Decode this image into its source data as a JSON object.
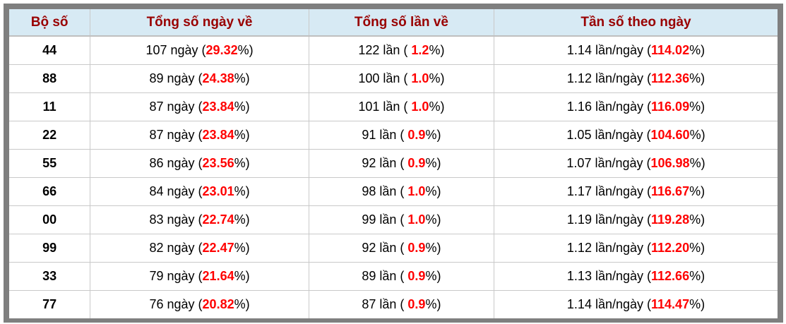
{
  "colors": {
    "frame_gray": "#7f7f7f",
    "header_bg": "#d7eaf4",
    "header_text": "#990000",
    "highlight_red": "#ff0000",
    "grid_line": "#c9c9c9",
    "cell_text": "#000000"
  },
  "table": {
    "columns": [
      {
        "label": "Bộ số"
      },
      {
        "label": "Tổng số ngày về"
      },
      {
        "label": "Tổng số lần về"
      },
      {
        "label": "Tần số theo ngày"
      }
    ],
    "rows": [
      {
        "pair": "44",
        "days": {
          "pre": "107 ngày (",
          "value": "29.32",
          "post": "%)"
        },
        "times": {
          "pre": "122 lần ( ",
          "value": "1.2",
          "post": "%)"
        },
        "freq": {
          "pre": "1.14 lần/ngày (",
          "value": "114.02",
          "post": "%)"
        }
      },
      {
        "pair": "88",
        "days": {
          "pre": "89 ngày (",
          "value": "24.38",
          "post": "%)"
        },
        "times": {
          "pre": "100 lần ( ",
          "value": "1.0",
          "post": "%)"
        },
        "freq": {
          "pre": "1.12 lần/ngày (",
          "value": "112.36",
          "post": "%)"
        }
      },
      {
        "pair": "11",
        "days": {
          "pre": "87 ngày (",
          "value": "23.84",
          "post": "%)"
        },
        "times": {
          "pre": "101 lần ( ",
          "value": "1.0",
          "post": "%)"
        },
        "freq": {
          "pre": "1.16 lần/ngày (",
          "value": "116.09",
          "post": "%)"
        }
      },
      {
        "pair": "22",
        "days": {
          "pre": "87 ngày (",
          "value": "23.84",
          "post": "%)"
        },
        "times": {
          "pre": "91 lần ( ",
          "value": "0.9",
          "post": "%)"
        },
        "freq": {
          "pre": "1.05 lần/ngày (",
          "value": "104.60",
          "post": "%)"
        }
      },
      {
        "pair": "55",
        "days": {
          "pre": "86 ngày (",
          "value": "23.56",
          "post": "%)"
        },
        "times": {
          "pre": "92 lần ( ",
          "value": "0.9",
          "post": "%)"
        },
        "freq": {
          "pre": "1.07 lần/ngày (",
          "value": "106.98",
          "post": "%)"
        }
      },
      {
        "pair": "66",
        "days": {
          "pre": "84 ngày (",
          "value": "23.01",
          "post": "%)"
        },
        "times": {
          "pre": "98 lần ( ",
          "value": "1.0",
          "post": "%)"
        },
        "freq": {
          "pre": "1.17 lần/ngày (",
          "value": "116.67",
          "post": "%)"
        }
      },
      {
        "pair": "00",
        "days": {
          "pre": "83 ngày (",
          "value": "22.74",
          "post": "%)"
        },
        "times": {
          "pre": "99 lần ( ",
          "value": "1.0",
          "post": "%)"
        },
        "freq": {
          "pre": "1.19 lần/ngày (",
          "value": "119.28",
          "post": "%)"
        }
      },
      {
        "pair": "99",
        "days": {
          "pre": "82 ngày (",
          "value": "22.47",
          "post": "%)"
        },
        "times": {
          "pre": "92 lần ( ",
          "value": "0.9",
          "post": "%)"
        },
        "freq": {
          "pre": "1.12 lần/ngày (",
          "value": "112.20",
          "post": "%)"
        }
      },
      {
        "pair": "33",
        "days": {
          "pre": "79 ngày (",
          "value": "21.64",
          "post": "%)"
        },
        "times": {
          "pre": "89 lần ( ",
          "value": "0.9",
          "post": "%)"
        },
        "freq": {
          "pre": "1.13 lần/ngày (",
          "value": "112.66",
          "post": "%)"
        }
      },
      {
        "pair": "77",
        "days": {
          "pre": "76 ngày (",
          "value": "20.82",
          "post": "%)"
        },
        "times": {
          "pre": "87 lần ( ",
          "value": "0.9",
          "post": "%)"
        },
        "freq": {
          "pre": "1.14 lần/ngày (",
          "value": "114.47",
          "post": "%)"
        }
      }
    ]
  }
}
